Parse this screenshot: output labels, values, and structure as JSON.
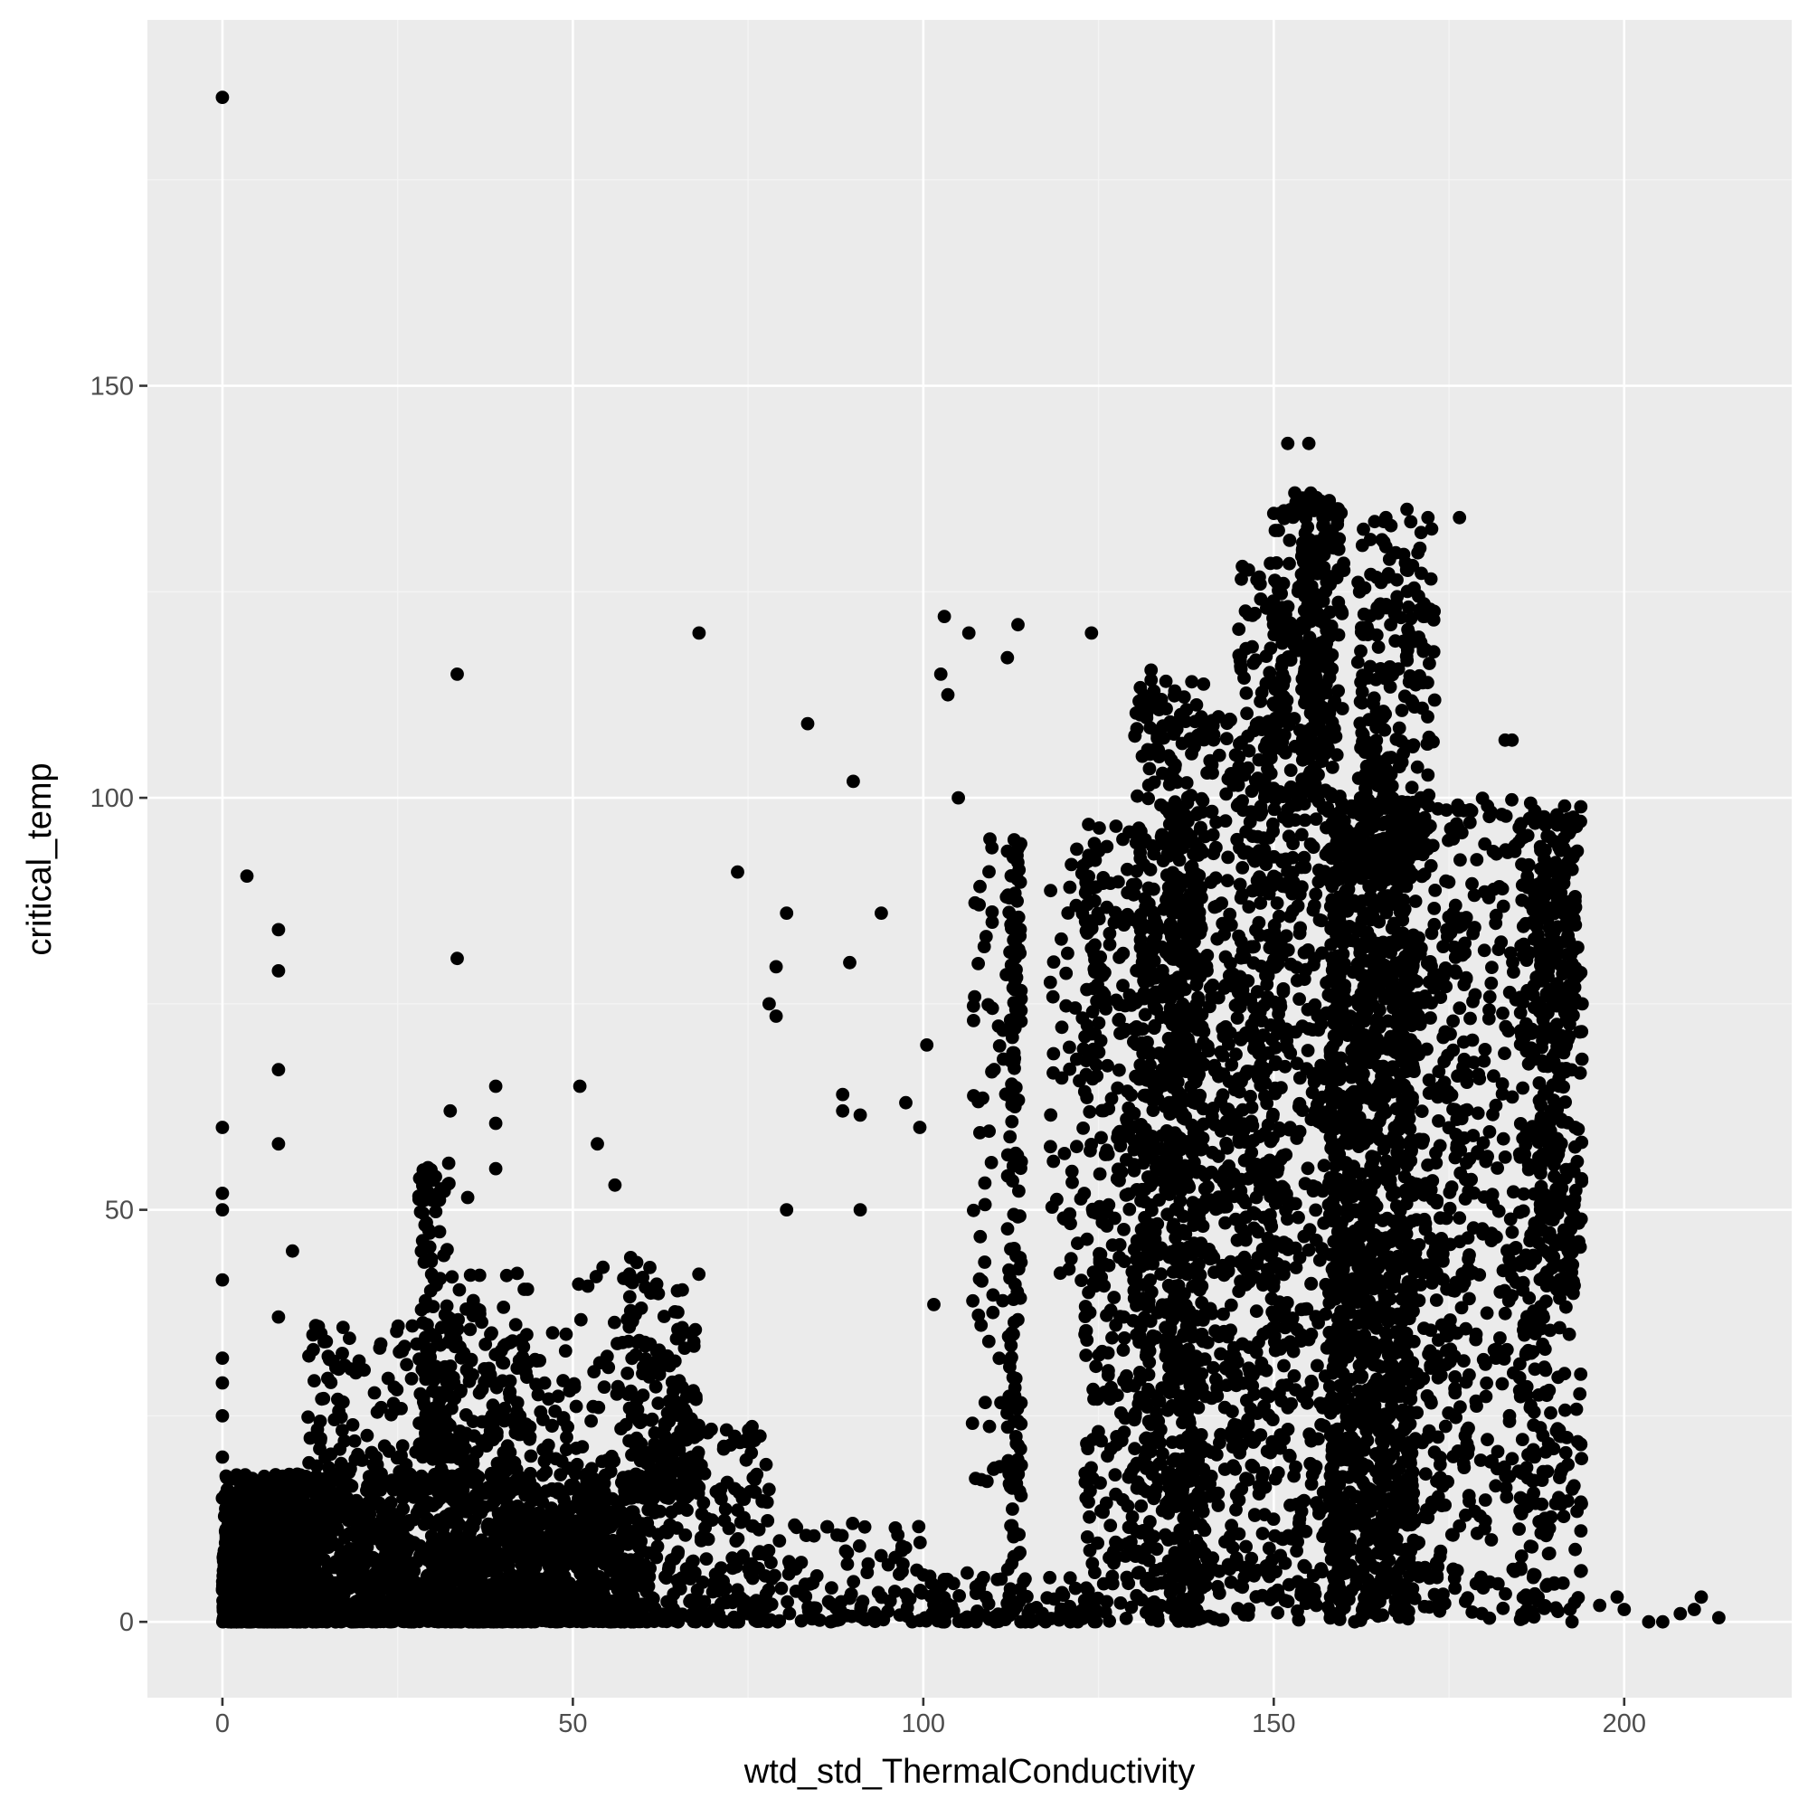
{
  "colors": {
    "panel_background": "#ebebeb",
    "grid_major": "#ffffff",
    "grid_minor": "#f4f4f4",
    "point": "#000000",
    "tick_label": "#4d4d4d",
    "tick_mark": "#333333"
  },
  "chart_data": {
    "type": "scatter",
    "xlabel": "wtd_std_ThermalConductivity",
    "ylabel": "critical_temp",
    "xlim": [
      -10.7,
      223.9
    ],
    "ylim": [
      -9.2,
      194.4
    ],
    "x_ticks": [
      0,
      50,
      100,
      150,
      200
    ],
    "y_ticks": [
      0,
      50,
      100,
      150
    ],
    "x_tick_labels": [
      "0",
      "50",
      "100",
      "150",
      "200"
    ],
    "y_tick_labels": [
      "0",
      "50",
      "100",
      "150"
    ],
    "grid": true,
    "legend": "none",
    "points": [
      [
        0.0,
        185.0
      ],
      [
        0.0,
        60.0
      ],
      [
        0.0,
        52.0
      ],
      [
        0.0,
        50.0
      ],
      [
        0.0,
        41.5
      ],
      [
        0.0,
        32.0
      ],
      [
        0.0,
        29.0
      ],
      [
        0.0,
        25.0
      ],
      [
        0.0,
        20.0
      ],
      [
        0.0,
        15.0
      ],
      [
        3.5,
        90.5
      ],
      [
        8.0,
        84.0
      ],
      [
        8.0,
        79.0
      ],
      [
        8.0,
        67.0
      ],
      [
        8.0,
        58.0
      ],
      [
        8.0,
        37.0
      ],
      [
        10.0,
        45.0
      ],
      [
        33.5,
        115.0
      ],
      [
        33.5,
        80.5
      ],
      [
        32.5,
        62.0
      ],
      [
        35.0,
        51.5
      ],
      [
        39.0,
        65.0
      ],
      [
        39.0,
        60.5
      ],
      [
        39.0,
        55.0
      ],
      [
        51.0,
        65.0
      ],
      [
        53.5,
        58.0
      ],
      [
        56.0,
        53.0
      ],
      [
        68.0,
        120.0
      ],
      [
        73.5,
        91.0
      ],
      [
        79.0,
        79.5
      ],
      [
        78.0,
        75.0
      ],
      [
        79.0,
        73.5
      ],
      [
        80.5,
        86.0
      ],
      [
        80.5,
        50.0
      ],
      [
        83.5,
        109.0
      ],
      [
        88.5,
        64.0
      ],
      [
        88.5,
        62.0
      ],
      [
        89.5,
        80.0
      ],
      [
        90.0,
        102.0
      ],
      [
        91.0,
        61.5
      ],
      [
        91.0,
        50.0
      ],
      [
        94.0,
        86.0
      ],
      [
        97.5,
        63.0
      ],
      [
        99.5,
        60.0
      ],
      [
        100.5,
        70.0
      ],
      [
        101.5,
        38.5
      ],
      [
        102.5,
        115.0
      ],
      [
        103.0,
        122.0
      ],
      [
        103.5,
        112.5
      ],
      [
        105.0,
        100.0
      ],
      [
        106.5,
        120.0
      ],
      [
        109.5,
        95.0
      ],
      [
        112.0,
        117.0
      ],
      [
        113.5,
        121.0
      ],
      [
        124.0,
        120.0
      ],
      [
        132.5,
        115.5
      ],
      [
        152.0,
        143.0
      ],
      [
        155.0,
        143.0
      ],
      [
        153.0,
        137.0
      ],
      [
        150.0,
        134.5
      ],
      [
        157.0,
        133.0
      ],
      [
        166.0,
        134.0
      ],
      [
        169.0,
        135.0
      ],
      [
        172.0,
        134.0
      ],
      [
        176.5,
        134.0
      ],
      [
        183.0,
        107.0
      ],
      [
        184.0,
        107.0
      ],
      [
        180.5,
        99.0
      ],
      [
        178.0,
        97.0
      ],
      [
        186.5,
        97.5
      ],
      [
        191.5,
        99.0
      ],
      [
        192.0,
        97.0
      ],
      [
        193.0,
        88.0
      ],
      [
        194.0,
        75.0
      ],
      [
        193.0,
        60.0
      ],
      [
        196.5,
        2.0
      ],
      [
        199.0,
        3.0
      ],
      [
        200.0,
        1.5
      ],
      [
        203.5,
        0.0
      ],
      [
        205.5,
        0.0
      ],
      [
        208.0,
        1.0
      ],
      [
        210.0,
        1.5
      ],
      [
        211.0,
        3.0
      ],
      [
        213.5,
        0.5
      ]
    ],
    "clusters": [
      {
        "x_range": [
          0,
          12
        ],
        "y_range": [
          0,
          18
        ],
        "count": 900
      },
      {
        "x_range": [
          0,
          60
        ],
        "y_range": [
          0,
          18
        ],
        "count": 1400
      },
      {
        "x_range": [
          12,
          50
        ],
        "y_range": [
          0,
          36
        ],
        "count": 700
      },
      {
        "x_range": [
          28,
          33
        ],
        "y_range": [
          20,
          56
        ],
        "count": 160
      },
      {
        "x_range": [
          33,
          44
        ],
        "y_range": [
          0,
          43
        ],
        "count": 220
      },
      {
        "x_range": [
          50,
          60
        ],
        "y_range": [
          0,
          45
        ],
        "count": 180
      },
      {
        "x_range": [
          58,
          68
        ],
        "y_range": [
          15,
          43
        ],
        "count": 200
      },
      {
        "x_range": [
          60,
          78
        ],
        "y_range": [
          0,
          24
        ],
        "count": 240
      },
      {
        "x_range": [
          75,
          100
        ],
        "y_range": [
          0,
          12
        ],
        "count": 120
      },
      {
        "x_range": [
          100,
          125
        ],
        "y_range": [
          0,
          6
        ],
        "count": 110
      },
      {
        "x_range": [
          107,
          114
        ],
        "y_range": [
          15,
          95
        ],
        "count": 70
      },
      {
        "x_range": [
          112,
          114
        ],
        "y_range": [
          0,
          95
        ],
        "count": 150
      },
      {
        "x_range": [
          118,
          126
        ],
        "y_range": [
          40,
          95
        ],
        "count": 80
      },
      {
        "x_range": [
          123,
          133
        ],
        "y_range": [
          0,
          98
        ],
        "count": 320
      },
      {
        "x_range": [
          130,
          140
        ],
        "y_range": [
          0,
          115
        ],
        "count": 600
      },
      {
        "x_range": [
          135,
          140
        ],
        "y_range": [
          0,
          100
        ],
        "count": 350
      },
      {
        "x_range": [
          140,
          150
        ],
        "y_range": [
          0,
          110
        ],
        "count": 450
      },
      {
        "x_range": [
          145,
          152
        ],
        "y_range": [
          40,
          130
        ],
        "count": 200
      },
      {
        "x_range": [
          150,
          160
        ],
        "y_range": [
          0,
          136
        ],
        "count": 550
      },
      {
        "x_range": [
          154,
          158
        ],
        "y_range": [
          100,
          137
        ],
        "count": 140
      },
      {
        "x_range": [
          158,
          170
        ],
        "y_range": [
          0,
          100
        ],
        "count": 1300
      },
      {
        "x_range": [
          162,
          173
        ],
        "y_range": [
          90,
          134
        ],
        "count": 250
      },
      {
        "x_range": [
          168,
          178
        ],
        "y_range": [
          0,
          100
        ],
        "count": 380
      },
      {
        "x_range": [
          178,
          188
        ],
        "y_range": [
          0,
          100
        ],
        "count": 220
      },
      {
        "x_range": [
          185,
          194
        ],
        "y_range": [
          0,
          99
        ],
        "count": 320
      },
      {
        "x_range": [
          188,
          193
        ],
        "y_range": [
          40,
          98
        ],
        "count": 220
      }
    ]
  }
}
